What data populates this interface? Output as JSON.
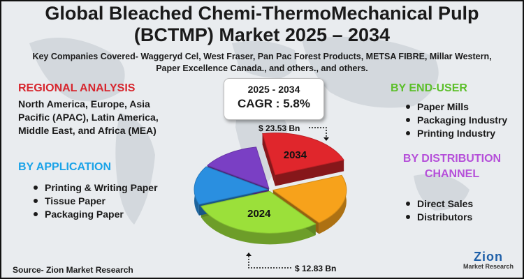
{
  "title_line1": "Global Bleached Chemi-ThermoMechanical Pulp",
  "title_line2": "(BCTMP) Market 2025 – 2034",
  "companies_line1": "Key Companies Covered- Waggeryd Cel, West Fraser, Pan Pac Forest Products, METSA FIBRE, Millar Western,",
  "companies_line2": "Paper Excellence Canada., and others., and others.",
  "regional": {
    "heading": "REGIONAL ANALYSIS",
    "text": "North America, Europe, Asia Pacific (APAC), Latin America, Middle East, and Africa (MEA)"
  },
  "application": {
    "heading": "BY APPLICATION",
    "items": [
      "Printing & Writing Paper",
      "Tissue Paper",
      "Packaging Paper"
    ]
  },
  "end_user": {
    "heading": "BY END-USER",
    "items": [
      "Paper Mills",
      "Packaging Industry",
      "Printing Industry"
    ]
  },
  "distribution": {
    "heading_line1": "BY DISTRIBUTION",
    "heading_line2": "CHANNEL",
    "items": [
      "Direct Sales",
      "Distributors"
    ]
  },
  "cagr": {
    "years": "2025 - 2034",
    "label": "CAGR : 5.8%"
  },
  "source": "Source- Zion Market Research",
  "logo": {
    "main": "Zion",
    "sub": "Market Research"
  },
  "colors": {
    "red": "#e0262c",
    "orange": "#f7a21b",
    "green": "#9be03a",
    "blue": "#2a8fe0",
    "purple": "#7a3fc4"
  },
  "chart_data": {
    "type": "pie",
    "style": "3d-exploded",
    "slices": [
      {
        "label": "2034",
        "value": 22,
        "color": "#e0262c"
      },
      {
        "label": "",
        "value": 20,
        "color": "#f7a21b"
      },
      {
        "label": "2024",
        "value": 30,
        "color": "#9be03a"
      },
      {
        "label": "",
        "value": 15,
        "color": "#2a8fe0"
      },
      {
        "label": "",
        "value": 13,
        "color": "#7a3fc4"
      }
    ],
    "annotations": [
      {
        "text": "$ 23.53 Bn",
        "target": "2034"
      },
      {
        "text": "$ 12.83 Bn",
        "target": "2024"
      }
    ]
  }
}
